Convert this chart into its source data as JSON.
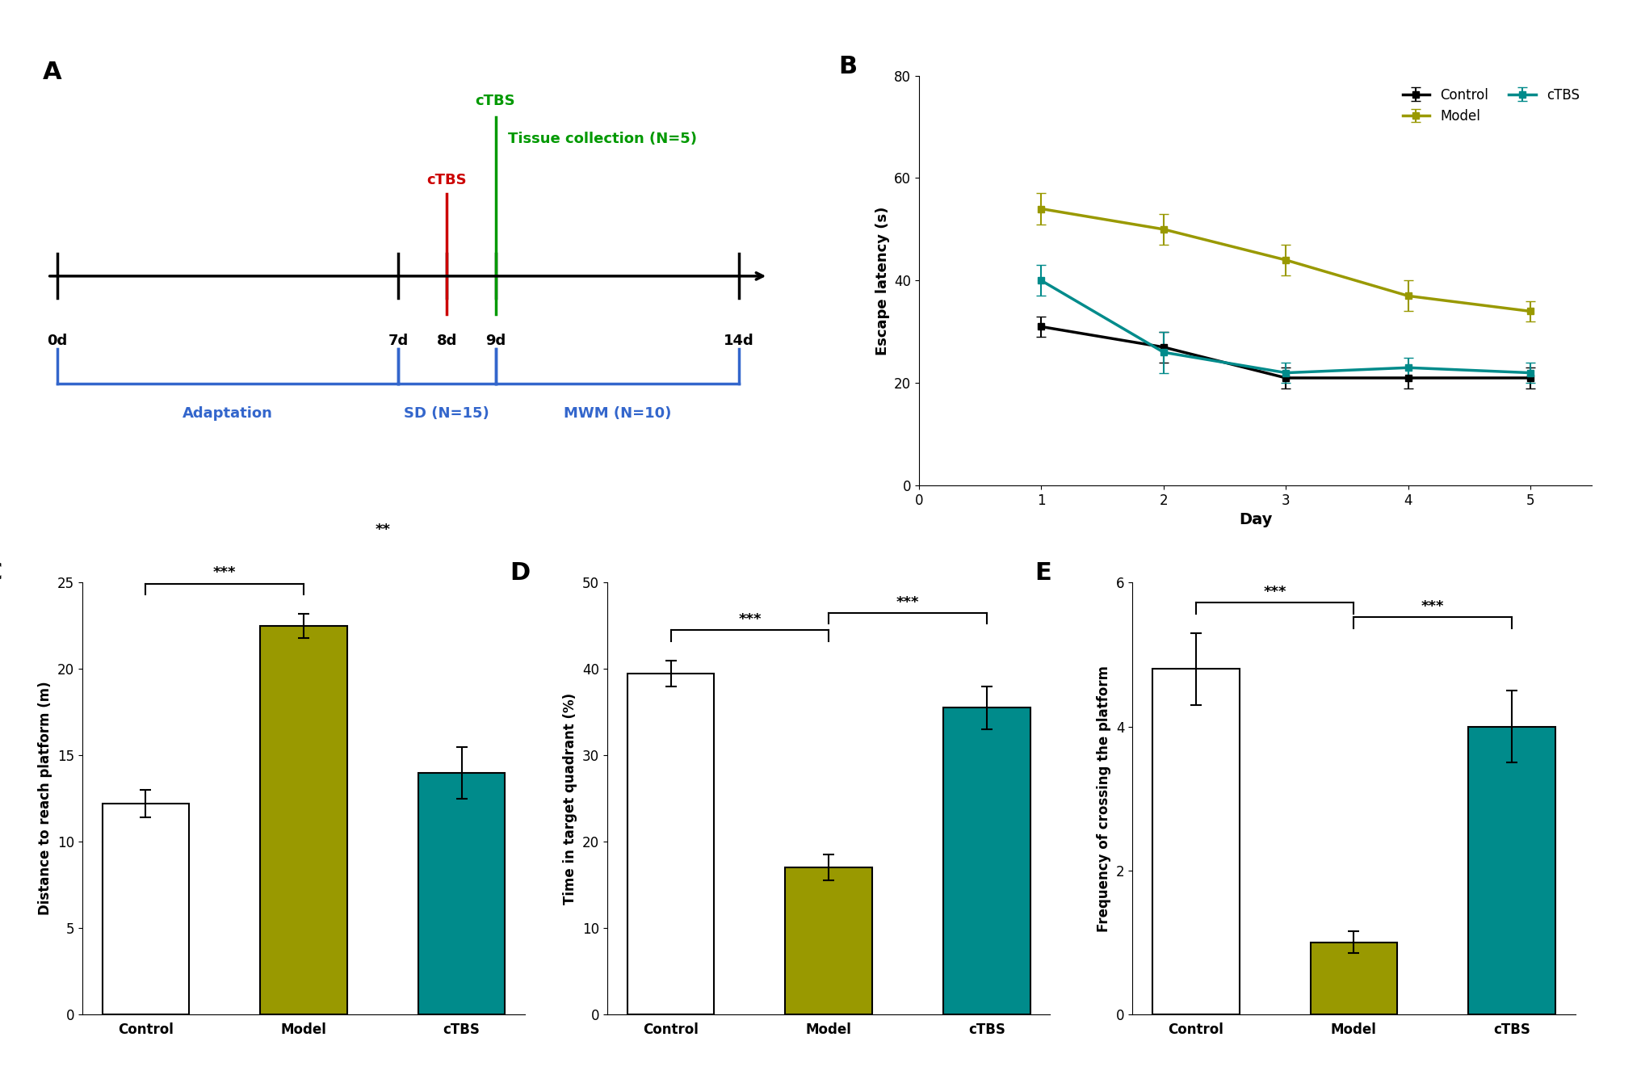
{
  "panel_A": {
    "timeline_days": [
      0,
      7,
      8,
      9,
      14
    ],
    "day_labels": [
      "0d",
      "7d",
      "8d",
      "9d",
      "14d"
    ],
    "ctbs_red_day": 8,
    "ctbs_green_day": 9,
    "adaptation_span": [
      0,
      7
    ],
    "sd_span": [
      7,
      9
    ],
    "mwm_span": [
      9,
      14
    ],
    "adaptation_label": "Adaptation",
    "sd_label": "SD (N=15)",
    "mwm_label": "MWM (N=10)",
    "ctbs_red_label": "cTBS",
    "ctbs_green_label": "cTBS",
    "tissue_label": "Tissue collection (N=5)",
    "timeline_color": "#000000",
    "bracket_color": "#3366cc",
    "ctbs_red_color": "#cc0000",
    "ctbs_green_color": "#009900"
  },
  "panel_B": {
    "days": [
      1,
      2,
      3,
      4,
      5
    ],
    "control_mean": [
      31,
      27,
      21,
      21,
      21
    ],
    "control_err": [
      2,
      3,
      2,
      2,
      2
    ],
    "model_mean": [
      54,
      50,
      44,
      37,
      34
    ],
    "model_err": [
      3,
      3,
      3,
      3,
      2
    ],
    "ctbs_mean": [
      40,
      26,
      22,
      23,
      22
    ],
    "ctbs_err": [
      3,
      4,
      2,
      2,
      2
    ],
    "control_color": "#000000",
    "model_color": "#999900",
    "ctbs_color": "#008B8B",
    "ylabel": "Escape latency (s)",
    "xlabel": "Day",
    "ylim": [
      0,
      80
    ],
    "yticks": [
      0,
      20,
      40,
      60,
      80
    ]
  },
  "panel_C": {
    "categories": [
      "Control",
      "Model",
      "cTBS"
    ],
    "values": [
      12.2,
      22.5,
      14.0
    ],
    "errors": [
      0.8,
      0.7,
      1.5
    ],
    "colors": [
      "#ffffff",
      "#999900",
      "#008B8B"
    ],
    "ylabel": "Distance to reach platform (m)",
    "ylim": [
      0,
      25
    ],
    "yticks": [
      0,
      5,
      10,
      15,
      20,
      25
    ],
    "sig_pairs": [
      [
        0,
        1,
        "***"
      ],
      [
        1,
        2,
        "**"
      ]
    ]
  },
  "panel_D": {
    "categories": [
      "Control",
      "Model",
      "cTBS"
    ],
    "values": [
      39.5,
      17.0,
      35.5
    ],
    "errors": [
      1.5,
      1.5,
      2.5
    ],
    "colors": [
      "#ffffff",
      "#999900",
      "#008B8B"
    ],
    "ylabel": "Time in target quadrant (%)",
    "ylim": [
      0,
      50
    ],
    "yticks": [
      0,
      10,
      20,
      30,
      40,
      50
    ],
    "sig_pairs": [
      [
        0,
        1,
        "***"
      ],
      [
        1,
        2,
        "***"
      ]
    ]
  },
  "panel_E": {
    "categories": [
      "Control",
      "Model",
      "cTBS"
    ],
    "values": [
      4.8,
      1.0,
      4.0
    ],
    "errors": [
      0.5,
      0.15,
      0.5
    ],
    "colors": [
      "#ffffff",
      "#999900",
      "#008B8B"
    ],
    "ylabel": "Frequency of crossing the platform",
    "ylim": [
      0,
      6
    ],
    "yticks": [
      0,
      2,
      4,
      6
    ],
    "sig_pairs": [
      [
        0,
        1,
        "***"
      ],
      [
        1,
        2,
        "***"
      ]
    ]
  }
}
